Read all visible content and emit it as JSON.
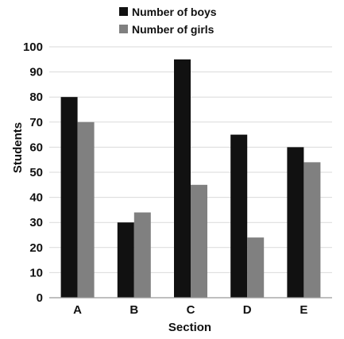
{
  "chart_data": {
    "type": "bar",
    "title": "",
    "xlabel": "Section",
    "ylabel": "Students",
    "categories": [
      "A",
      "B",
      "C",
      "D",
      "E"
    ],
    "series": [
      {
        "name": "Number of boys",
        "values": [
          80,
          30,
          95,
          65,
          60
        ],
        "color": "#111111"
      },
      {
        "name": "Number of girls",
        "values": [
          70,
          34,
          45,
          24,
          54
        ],
        "color": "#808080"
      }
    ],
    "ylim": [
      0,
      100
    ],
    "yticks": [
      0,
      10,
      20,
      30,
      40,
      50,
      60,
      70,
      80,
      90,
      100
    ],
    "grid": true,
    "legend_position": "top"
  },
  "colors": {
    "grid": "#d9d9d9",
    "axis": "#999999",
    "text": "#111111"
  }
}
